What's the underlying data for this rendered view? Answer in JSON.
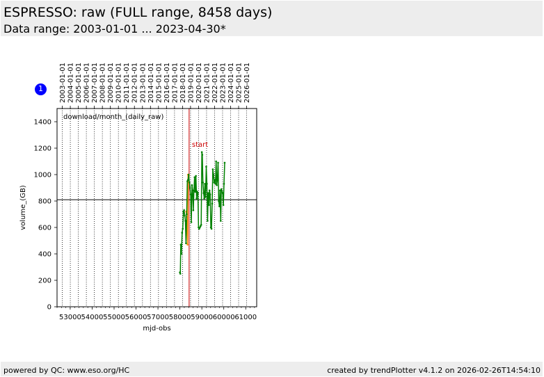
{
  "header": {
    "title": "ESPRESSO: raw (FULL range, 8458 days)",
    "subtitle": "Data range: 2003-01-01 ... 2023-04-30*"
  },
  "badge": {
    "label": "1"
  },
  "footer": {
    "left": "powered by QC: www.eso.org/HC",
    "right": "created by trendPlotter v4.1.2 on 2026-02-26T14:54:10"
  },
  "chart_data": {
    "type": "line",
    "annotation": "download/month_(daily_raw)",
    "xlabel": "mjd-obs",
    "ylabel": "volume_(GB)",
    "xlim": [
      52400,
      61500
    ],
    "ylim": [
      0,
      1500
    ],
    "x_ticks": [
      53000,
      54000,
      55000,
      56000,
      57000,
      58000,
      59000,
      60000,
      61000
    ],
    "x_tick_labels": [
      "53000",
      "54000",
      "55000",
      "56000",
      "57000",
      "58000",
      "59000",
      "60000",
      "61000"
    ],
    "y_ticks": [
      0,
      200,
      400,
      600,
      800,
      1000,
      1200,
      1400
    ],
    "y_tick_labels": [
      "0",
      "200",
      "400",
      "600",
      "800",
      "1000",
      "1200",
      "1400"
    ],
    "top_axis_ticks": [
      52640,
      53005,
      53371,
      53736,
      54101,
      54466,
      54832,
      55197,
      55562,
      55927,
      56293,
      56658,
      57023,
      57388,
      57754,
      58119,
      58484,
      58849,
      59215,
      59580,
      59945,
      60310,
      60676,
      61041
    ],
    "top_axis_labels": [
      "2003-01-01",
      "2004-01-01",
      "2005-01-01",
      "2006-01-01",
      "2007-01-01",
      "2008-01-01",
      "2009-01-01",
      "2010-01-01",
      "2011-01-01",
      "2012-01-01",
      "2013-01-01",
      "2014-01-01",
      "2015-01-01",
      "2016-01-01",
      "2017-01-01",
      "2018-01-01",
      "2019-01-01",
      "2020-01-01",
      "2021-01-01",
      "2022-01-01",
      "2023-01-01",
      "2024-01-01",
      "2025-01-01",
      "2026-01-01"
    ],
    "grid": "vertical dotted at year boundaries",
    "reference_line": {
      "y": 810,
      "color": "#000000"
    },
    "start_marker": {
      "x": 58420,
      "label": "start",
      "color": "#cc0000"
    },
    "series": [
      {
        "color": "#ff8c00",
        "x": [
          58290,
          58310,
          58330,
          58350,
          58370,
          58390,
          58410
        ],
        "y": [
          720,
          680,
          600,
          470,
          1000,
          960,
          990
        ]
      },
      {
        "color": "#008000",
        "x": [
          58000,
          58020,
          58040,
          58070,
          58100,
          58130,
          58160,
          58190,
          58220,
          58250,
          58280,
          58310,
          58340,
          58370,
          58400,
          58430,
          58460,
          58490,
          58520,
          58550,
          58580,
          58610,
          58640,
          58670,
          58700,
          58730,
          58760,
          58790,
          58820,
          58850,
          58880,
          58910,
          58940,
          58970,
          59000,
          59020,
          59050,
          59080,
          59110,
          59140,
          59170,
          59200,
          59230,
          59260,
          59290,
          59320,
          59350,
          59380,
          59410,
          59440,
          59470,
          59500,
          59530,
          59560,
          59590,
          59620,
          59650,
          59680,
          59710,
          59740,
          59770,
          59800,
          59830,
          59860,
          59890,
          59920,
          59950,
          59980,
          60010,
          60040
        ],
        "y": [
          260,
          250,
          470,
          400,
          560,
          590,
          720,
          730,
          690,
          650,
          480,
          700,
          950,
          960,
          1000,
          940,
          900,
          850,
          640,
          920,
          880,
          730,
          880,
          980,
          870,
          990,
          820,
          870,
          860,
          600,
          590,
          600,
          610,
          620,
          1170,
          1150,
          940,
          860,
          820,
          930,
          830,
          1060,
          930,
          650,
          860,
          770,
          880,
          850,
          600,
          590,
          780,
          1040,
          1000,
          940,
          960,
          930,
          1100,
          920,
          960,
          1090,
          800,
          760,
          880,
          650,
          890,
          870,
          860,
          770,
          930,
          1090
        ]
      }
    ]
  }
}
